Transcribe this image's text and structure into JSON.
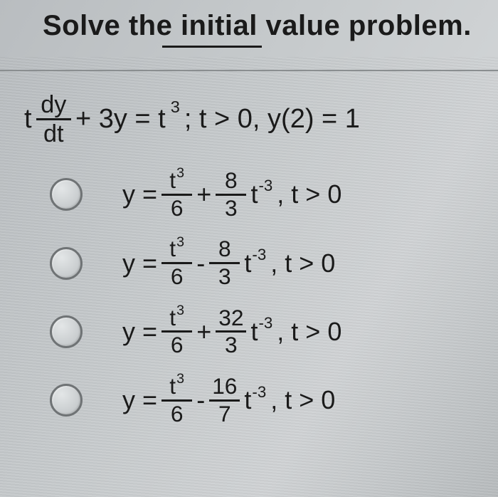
{
  "type": "multiple-choice-math",
  "title": "Solve the initial value problem.",
  "title_fontsize": 40,
  "underline_word": "value",
  "background_gradient": [
    "#b9bdc0",
    "#c6cacc",
    "#d0d3d5",
    "#b8bcbe"
  ],
  "text_color": "#1a1a1a",
  "divider_color": "#8a8e90",
  "radio_border_color": "#6f7375",
  "equation": {
    "lhs_t": "t",
    "frac_num": "dy",
    "frac_den": "dt",
    "plus_3y": "+ 3y = t",
    "exp3": "3",
    "cond": "; t > 0, y(2) = 1"
  },
  "option_template": {
    "y_eq": "y =",
    "t_label": "t",
    "cond": ", t > 0"
  },
  "options": [
    {
      "term1_num_exp": "3",
      "term1_den": "6",
      "op": "+",
      "term2_num": "8",
      "term2_den": "3",
      "t_exp": "-3"
    },
    {
      "term1_num_exp": "3",
      "term1_den": "6",
      "op": "-",
      "term2_num": "8",
      "term2_den": "3",
      "t_exp": "-3"
    },
    {
      "term1_num_exp": "3",
      "term1_den": "6",
      "op": "+",
      "term2_num": "32",
      "term2_den": "3",
      "t_exp": "-3"
    },
    {
      "term1_num_exp": "3",
      "term1_den": "6",
      "op": "-",
      "term2_num": "16",
      "term2_den": "7",
      "t_exp": "-3"
    }
  ]
}
